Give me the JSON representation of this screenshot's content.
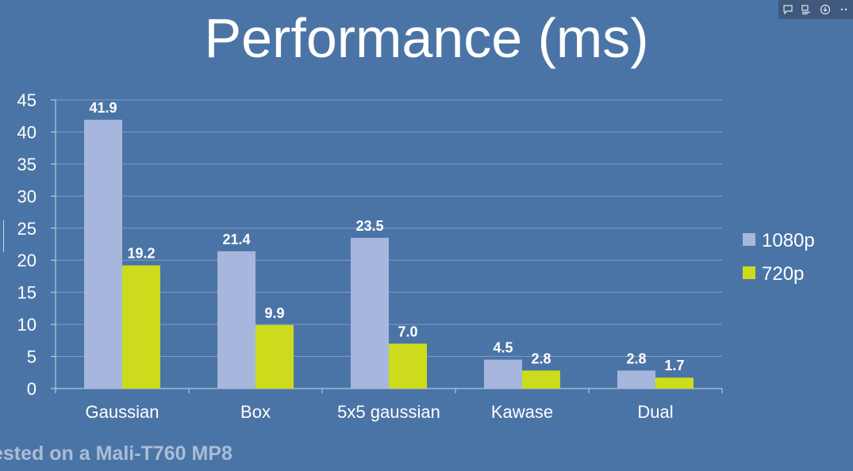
{
  "slide": {
    "title": "Performance (ms)",
    "footnote": "ested on a Mali-T760 MP8"
  },
  "toolbar": {
    "icons": [
      "comment-icon",
      "notes-icon",
      "download-icon",
      "more-icon"
    ]
  },
  "colors": {
    "background": "#4b74a6",
    "series_1080p": "#a7b6dc",
    "series_720p": "#ccdc1c",
    "gridline": "#7f9cc2",
    "text": "#ffffff"
  },
  "chart_data": {
    "type": "bar",
    "title": "Performance (ms)",
    "xlabel": "",
    "ylabel": "",
    "categories": [
      "Gaussian",
      "Box",
      "5x5 gaussian",
      "Kawase",
      "Dual"
    ],
    "series": [
      {
        "name": "1080p",
        "values": [
          41.9,
          21.4,
          23.5,
          4.5,
          2.8
        ],
        "labels": [
          "41.9",
          "21.4",
          "23.5",
          "4.5",
          "2.8"
        ],
        "color": "#a7b6dc"
      },
      {
        "name": "720p",
        "values": [
          19.2,
          9.9,
          7.0,
          2.8,
          1.7
        ],
        "labels": [
          "19.2",
          "9.9",
          "7.0",
          "2.8",
          "1.7"
        ],
        "color": "#ccdc1c"
      }
    ],
    "ylim": [
      0,
      45
    ],
    "yticks": [
      "0",
      "5",
      "10",
      "15",
      "20",
      "25",
      "30",
      "35",
      "40",
      "45"
    ],
    "ytick_values": [
      0,
      5,
      10,
      15,
      20,
      25,
      30,
      35,
      40,
      45
    ],
    "grid": true,
    "legend": "right"
  }
}
